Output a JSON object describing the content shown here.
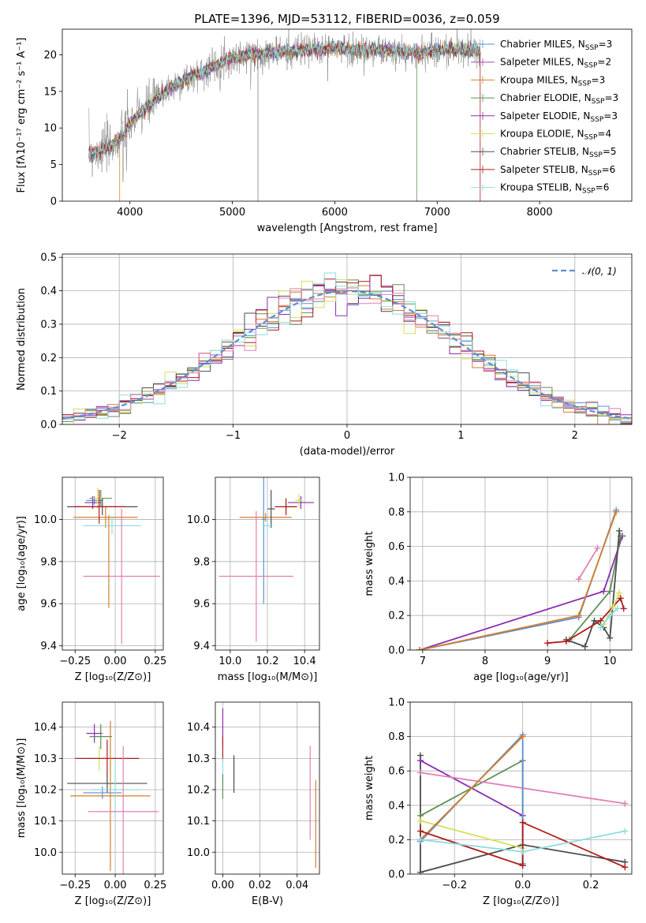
{
  "figure_title": "PLATE=1396, MJD=53112, FIBERID=0036, z=0.059",
  "colors": [
    "#5b8fd6",
    "#a64cb8",
    "#d47f2a",
    "#5e8f57",
    "#8a2db0",
    "#d4e05a",
    "#4d4d4d",
    "#b01c1c",
    "#8fdbe0",
    "#e47fb8",
    "#808080"
  ],
  "chart_data": [
    {
      "id": "spectrum",
      "type": "line",
      "title": "PLATE=1396, MJD=53112, FIBERID=0036, z=0.059",
      "xlabel": "wavelength [Angstrom, rest frame]",
      "ylabel": "Flux [fλ10⁻¹⁷ erg cm⁻² s⁻¹ A⁻¹]",
      "xlim": [
        3340,
        8900
      ],
      "ylim": [
        0,
        23.5
      ],
      "xticks": [
        4000,
        5000,
        6000,
        7000,
        8000
      ],
      "yticks": [
        0,
        5,
        10,
        15,
        20
      ],
      "grid": false,
      "legend_position": "upper-right",
      "x_range_data": [
        3600,
        7420
      ],
      "continuum": {
        "x": [
          3600,
          3700,
          3800,
          3900,
          4000,
          4100,
          4200,
          4300,
          4400,
          4500,
          4600,
          4700,
          4800,
          4900,
          5000,
          5200,
          5400,
          5600,
          5800,
          6000,
          6200,
          6400,
          6600,
          6800,
          7000,
          7200,
          7420
        ],
        "y": [
          6.5,
          6.8,
          7.5,
          8.5,
          10.5,
          12.0,
          13.2,
          14.5,
          15.5,
          16.3,
          17.0,
          17.6,
          18.3,
          19.0,
          19.6,
          20.0,
          20.3,
          20.5,
          20.8,
          20.9,
          20.6,
          20.7,
          20.4,
          20.3,
          20.6,
          20.8,
          20.5
        ]
      },
      "series": [
        {
          "name": "Chabrier MILES, N_SSP=3",
          "label_main": "Chabrier MILES, N",
          "label_sub": "SSP",
          "label_tail": "=3",
          "color": "#5b8fd6"
        },
        {
          "name": "Salpeter MILES, N_SSP=2",
          "label_main": "Salpeter MILES, N",
          "label_sub": "SSP",
          "label_tail": "=2",
          "color": "#a64cb8"
        },
        {
          "name": "Kroupa MILES, N_SSP=3",
          "label_main": "Kroupa MILES, N",
          "label_sub": "SSP",
          "label_tail": "=3",
          "color": "#d47f2a"
        },
        {
          "name": "Chabrier ELODIE, N_SSP=3",
          "label_main": "Chabrier ELODIE, N",
          "label_sub": "SSP",
          "label_tail": "=3",
          "color": "#5e8f57"
        },
        {
          "name": "Salpeter ELODIE, N_SSP=3",
          "label_main": "Salpeter ELODIE, N",
          "label_sub": "SSP",
          "label_tail": "=3",
          "color": "#8a2db0"
        },
        {
          "name": "Kroupa ELODIE, N_SSP=4",
          "label_main": "Kroupa ELODIE, N",
          "label_sub": "SSP",
          "label_tail": "=4",
          "color": "#d4e05a"
        },
        {
          "name": "Chabrier STELIB, N_SSP=5",
          "label_main": "Chabrier STELIB, N",
          "label_sub": "SSP",
          "label_tail": "=5",
          "color": "#4d4d4d"
        },
        {
          "name": "Salpeter STELIB, N_SSP=6",
          "label_main": "Salpeter STELIB, N",
          "label_sub": "SSP",
          "label_tail": "=6",
          "color": "#b01c1c"
        },
        {
          "name": "Kroupa STELIB, N_SSP=6",
          "label_main": "Kroupa STELIB, N",
          "label_sub": "SSP",
          "label_tail": "=6",
          "color": "#8fdbe0"
        }
      ]
    },
    {
      "id": "residuals",
      "type": "histogram",
      "xlabel": "(data-model)/error",
      "ylabel": "Normed distribution",
      "xlim": [
        -2.5,
        2.5
      ],
      "ylim": [
        0,
        0.51
      ],
      "xticks": [
        -2,
        -1,
        0,
        1,
        2
      ],
      "xtick_labels": [
        "−2",
        "−1",
        "0",
        "1",
        "2"
      ],
      "yticks": [
        0.0,
        0.1,
        0.2,
        0.3,
        0.4,
        0.5
      ],
      "ytick_labels": [
        "0.0",
        "0.1",
        "0.2",
        "0.3",
        "0.4",
        "0.5"
      ],
      "grid": true,
      "legend_position": "upper-right",
      "legend_label": "𝒩(0, 1)",
      "reference_curve": {
        "name": "normal",
        "mean": 0,
        "sigma": 1,
        "color": "#5b8fd6"
      },
      "bin_width": 0.1,
      "bin_start": -2.5,
      "hist_colors": [
        "#5b8fd6",
        "#d47f2a",
        "#5e8f57",
        "#8a2db0",
        "#d4e05a",
        "#4d4d4d",
        "#b01c1c",
        "#8fdbe0",
        "#e47fb8"
      ]
    },
    {
      "id": "age-vs-Z",
      "type": "errorbar",
      "xlabel": "Z [log₁₀(Z/Z⊙)]",
      "ylabel": "age  [log₁₀(age/yr)]",
      "xlim": [
        -0.33,
        0.3
      ],
      "ylim": [
        9.38,
        10.2
      ],
      "xticks": [
        -0.25,
        0.0,
        0.25
      ],
      "xtick_labels": [
        "−0.25",
        "0.00",
        "0.25"
      ],
      "yticks": [
        9.4,
        9.6,
        9.8,
        10.0
      ],
      "ytick_labels": [
        "9.4",
        "9.6",
        "9.8",
        "10.0"
      ],
      "grid": true,
      "points": [
        {
          "x": -0.13,
          "xerr": 0.05,
          "y": 10.09,
          "yerr": 0.02,
          "color": "#5b8fd6"
        },
        {
          "x": -0.06,
          "xerr": 0.2,
          "y": 10.01,
          "yerr": 0.05,
          "color": "#d47f2a"
        },
        {
          "x": -0.09,
          "xerr": 0.07,
          "y": 10.1,
          "yerr": 0.04,
          "color": "#5e8f57"
        },
        {
          "x": -0.14,
          "xerr": 0.05,
          "y": 10.08,
          "yerr": 0.03,
          "color": "#8a2db0"
        },
        {
          "x": -0.11,
          "xerr": 0.03,
          "y": 10.1,
          "yerr": 0.05,
          "color": "#d4e05a"
        },
        {
          "x": -0.08,
          "xerr": 0.22,
          "y": 10.06,
          "yerr": 0.04,
          "color": "#4d4d4d"
        },
        {
          "x": -0.1,
          "xerr": 0.16,
          "y": 10.06,
          "yerr": 0.08,
          "color": "#b01c1c"
        },
        {
          "x": -0.02,
          "xerr": 0.18,
          "y": 9.97,
          "yerr": 0.04,
          "color": "#8fdbe0"
        },
        {
          "x": 0.04,
          "xerr": 0.24,
          "y": 9.73,
          "yerr": 0.32,
          "color": "#e47fb8"
        },
        {
          "x": -0.04,
          "xerr": 0.0,
          "y": 9.8,
          "yerr": 0.22,
          "color": "#d47f2a"
        }
      ]
    },
    {
      "id": "age-vs-mass",
      "type": "errorbar",
      "xlabel": "mass [log₁₀(M/M⊙)]",
      "ylabel": "",
      "xlim": [
        9.92,
        10.48
      ],
      "ylim": [
        9.38,
        10.2
      ],
      "xticks": [
        10.0,
        10.2,
        10.4
      ],
      "xtick_labels": [
        "10.0",
        "10.2",
        "10.4"
      ],
      "yticks": [
        9.4,
        9.6,
        9.8,
        10.0
      ],
      "ytick_labels": [
        "9.4",
        "9.6",
        "9.8",
        "10.0"
      ],
      "grid": true,
      "points": [
        {
          "x": 10.18,
          "xerr": 0.01,
          "y": 10.0,
          "yerr": 0.4,
          "color": "#5b8fd6"
        },
        {
          "x": 10.19,
          "xerr": 0.14,
          "y": 10.01,
          "yerr": 0.02,
          "color": "#d47f2a"
        },
        {
          "x": 10.3,
          "xerr": 0.05,
          "y": 10.06,
          "yerr": 0.03,
          "color": "#5e8f57"
        },
        {
          "x": 10.38,
          "xerr": 0.07,
          "y": 10.08,
          "yerr": 0.03,
          "color": "#8a2db0"
        },
        {
          "x": 10.37,
          "xerr": 0.02,
          "y": 10.09,
          "yerr": 0.03,
          "color": "#d4e05a"
        },
        {
          "x": 10.22,
          "xerr": 0.02,
          "y": 10.05,
          "yerr": 0.09,
          "color": "#4d4d4d"
        },
        {
          "x": 10.3,
          "xerr": 0.06,
          "y": 10.06,
          "yerr": 0.04,
          "color": "#b01c1c"
        },
        {
          "x": 10.2,
          "xerr": 0.02,
          "y": 9.97,
          "yerr": 0.04,
          "color": "#8fdbe0"
        },
        {
          "x": 10.14,
          "xerr": 0.2,
          "y": 9.73,
          "yerr": 0.31,
          "color": "#e47fb8"
        }
      ]
    },
    {
      "id": "massweight-vs-age",
      "type": "line",
      "xlabel": "age  [log₁₀(age/yr)]",
      "ylabel": "mass weight",
      "xlim": [
        6.8,
        10.35
      ],
      "ylim": [
        0.0,
        1.0
      ],
      "xticks": [
        7,
        8,
        9,
        10
      ],
      "xtick_labels": [
        "7",
        "8",
        "9",
        "10"
      ],
      "yticks": [
        0.0,
        0.2,
        0.4,
        0.6,
        0.8,
        1.0
      ],
      "ytick_labels": [
        "0.0",
        "0.2",
        "0.4",
        "0.6",
        "0.8",
        "1.0"
      ],
      "grid": true,
      "series": [
        {
          "color": "#8a2db0",
          "x": [
            6.95,
            9.9,
            10.2
          ],
          "y": [
            0.0,
            0.34,
            0.66
          ]
        },
        {
          "color": "#5b8fd6",
          "x": [
            6.95,
            9.5,
            10.1
          ],
          "y": [
            0.0,
            0.19,
            0.81
          ]
        },
        {
          "color": "#d47f2a",
          "x": [
            6.95,
            9.5,
            10.1
          ],
          "y": [
            0.0,
            0.2,
            0.8
          ]
        },
        {
          "color": "#e47fb8",
          "x": [
            9.5,
            9.8
          ],
          "y": [
            0.41,
            0.59
          ]
        },
        {
          "color": "#5e8f57",
          "x": [
            9.35,
            10.0,
            10.17
          ],
          "y": [
            0.06,
            0.34,
            0.66
          ]
        },
        {
          "color": "#4d4d4d",
          "x": [
            9.3,
            9.6,
            9.75,
            9.9,
            10.0,
            10.15
          ],
          "y": [
            0.06,
            0.02,
            0.17,
            0.13,
            0.07,
            0.69
          ]
        },
        {
          "color": "#b01c1c",
          "x": [
            9.0,
            9.3,
            9.85,
            10.17,
            10.22
          ],
          "y": [
            0.04,
            0.05,
            0.17,
            0.3,
            0.24
          ]
        },
        {
          "color": "#d4e05a",
          "x": [
            9.9,
            10.05,
            10.15
          ],
          "y": [
            0.15,
            0.25,
            0.33
          ]
        },
        {
          "color": "#8fdbe0",
          "x": [
            9.85,
            10.0,
            10.12
          ],
          "y": [
            0.13,
            0.2,
            0.24
          ]
        }
      ]
    },
    {
      "id": "mass-vs-Z",
      "type": "errorbar",
      "xlabel": "Z [log₁₀(Z/Z⊙)]",
      "ylabel": "mass [log₁₀(M/M⊙)]",
      "xlim": [
        -0.33,
        0.3
      ],
      "ylim": [
        9.93,
        10.48
      ],
      "xticks": [
        -0.25,
        0.0,
        0.25
      ],
      "xtick_labels": [
        "−0.25",
        "0.00",
        "0.25"
      ],
      "yticks": [
        10.0,
        10.1,
        10.2,
        10.3,
        10.4
      ],
      "ytick_labels": [
        "10.0",
        "10.1",
        "10.2",
        "10.3",
        "10.4"
      ],
      "grid": true,
      "points": [
        {
          "x": -0.13,
          "xerr": 0.05,
          "y": 10.38,
          "yerr": 0.03,
          "color": "#8a2db0"
        },
        {
          "x": -0.09,
          "xerr": 0.07,
          "y": 10.37,
          "yerr": 0.04,
          "color": "#5e8f57"
        },
        {
          "x": -0.1,
          "xerr": 0.08,
          "y": 10.3,
          "yerr": 0.04,
          "color": "#d4e05a"
        },
        {
          "x": -0.05,
          "xerr": 0.2,
          "y": 10.3,
          "yerr": 0.06,
          "color": "#b01c1c"
        },
        {
          "x": -0.05,
          "xerr": 0.25,
          "y": 10.22,
          "yerr": 0.03,
          "color": "#4d4d4d"
        },
        {
          "x": -0.08,
          "xerr": 0.12,
          "y": 10.19,
          "yerr": 0.02,
          "color": "#5b8fd6"
        },
        {
          "x": -0.03,
          "xerr": 0.25,
          "y": 10.18,
          "yerr": 0.24,
          "color": "#d47f2a"
        },
        {
          "x": 0.0,
          "xerr": 0.15,
          "y": 10.2,
          "yerr": 0.09,
          "color": "#8fdbe0"
        },
        {
          "x": 0.05,
          "xerr": 0.22,
          "y": 10.13,
          "yerr": 0.21,
          "color": "#e47fb8"
        }
      ]
    },
    {
      "id": "mass-vs-EBV",
      "type": "errorbar",
      "xlabel": "E(B-V)",
      "ylabel": "",
      "xlim": [
        -0.004,
        0.052
      ],
      "ylim": [
        9.93,
        10.48
      ],
      "xticks": [
        0.0,
        0.02,
        0.04
      ],
      "xtick_labels": [
        "0.00",
        "0.02",
        "0.04"
      ],
      "yticks": [
        10.0,
        10.1,
        10.2,
        10.3,
        10.4
      ],
      "ytick_labels": [
        "10.0",
        "10.1",
        "10.2",
        "10.3",
        "10.4"
      ],
      "grid": true,
      "points": [
        {
          "x": 0.0,
          "xerr": 0.0,
          "y": 10.4,
          "yerr": 0.06,
          "color": "#8a2db0"
        },
        {
          "x": 0.0,
          "xerr": 0.0,
          "y": 10.33,
          "yerr": 0.04,
          "color": "#b01c1c"
        },
        {
          "x": 0.0,
          "xerr": 0.0,
          "y": 10.25,
          "yerr": 0.05,
          "color": "#8fdbe0"
        },
        {
          "x": 0.0,
          "xerr": 0.0,
          "y": 10.21,
          "yerr": 0.04,
          "color": "#5e8f57"
        },
        {
          "x": 0.006,
          "xerr": 0.0,
          "y": 10.25,
          "yerr": 0.06,
          "color": "#4d4d4d"
        },
        {
          "x": 0.047,
          "xerr": 0.0,
          "y": 10.19,
          "yerr": 0.15,
          "color": "#e47fb8"
        },
        {
          "x": 0.05,
          "xerr": 0.0,
          "y": 10.09,
          "yerr": 0.14,
          "color": "#d47f2a"
        }
      ]
    },
    {
      "id": "massweight-vs-Z",
      "type": "line",
      "xlabel": "Z [log₁₀(Z/Z⊙)]",
      "ylabel": "mass weight",
      "xlim": [
        -0.33,
        0.32
      ],
      "ylim": [
        0.0,
        1.0
      ],
      "xticks": [
        -0.2,
        0.0,
        0.2
      ],
      "xtick_labels": [
        "−0.2",
        "0.0",
        "0.2"
      ],
      "yticks": [
        0.0,
        0.2,
        0.4,
        0.6,
        0.8,
        1.0
      ],
      "ytick_labels": [
        "0.0",
        "0.2",
        "0.4",
        "0.6",
        "0.8",
        "1.0"
      ],
      "grid": true,
      "series": [
        {
          "color": "#4d4d4d",
          "x": [
            -0.3,
            -0.3,
            0.0,
            0.3
          ],
          "y": [
            0.69,
            0.01,
            0.17,
            0.07
          ]
        },
        {
          "color": "#8a2db0",
          "x": [
            -0.3,
            0.0
          ],
          "y": [
            0.66,
            0.34
          ]
        },
        {
          "color": "#5e8f57",
          "x": [
            -0.3,
            0.0,
            0.0
          ],
          "y": [
            0.34,
            0.66,
            0.06
          ]
        },
        {
          "color": "#e47fb8",
          "x": [
            -0.3,
            0.3
          ],
          "y": [
            0.59,
            0.41
          ]
        },
        {
          "color": "#d4e05a",
          "x": [
            -0.3,
            0.0
          ],
          "y": [
            0.31,
            0.15
          ]
        },
        {
          "color": "#5b8fd6",
          "x": [
            -0.3,
            0.0,
            0.0
          ],
          "y": [
            0.19,
            0.81,
            0.05
          ]
        },
        {
          "color": "#d47f2a",
          "x": [
            -0.3,
            0.0
          ],
          "y": [
            0.2,
            0.8
          ]
        },
        {
          "color": "#b01c1c",
          "x": [
            -0.3,
            0.0,
            0.0,
            0.3
          ],
          "y": [
            0.25,
            0.05,
            0.3,
            0.04
          ]
        },
        {
          "color": "#8fdbe0",
          "x": [
            -0.3,
            0.0,
            0.3
          ],
          "y": [
            0.2,
            0.13,
            0.25
          ]
        }
      ]
    }
  ]
}
